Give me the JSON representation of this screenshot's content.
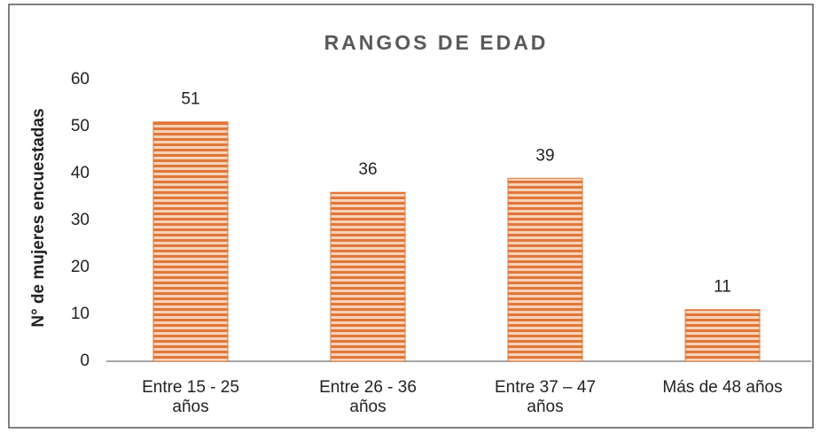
{
  "chart_data": {
    "type": "bar",
    "title": "RANGOS DE EDAD",
    "y_label": "N° de mujeres encuestadas",
    "categories": [
      "Entre 15 - 25 años",
      "Entre 26 - 36 años",
      "Entre 37 – 47 años",
      "Más de 48 años"
    ],
    "values": [
      51,
      36,
      39,
      11
    ],
    "color": "#e0773a",
    "ylim": [
      0,
      60
    ],
    "yticks": [
      0,
      10,
      20,
      30,
      40,
      50,
      60
    ],
    "grid": false
  }
}
